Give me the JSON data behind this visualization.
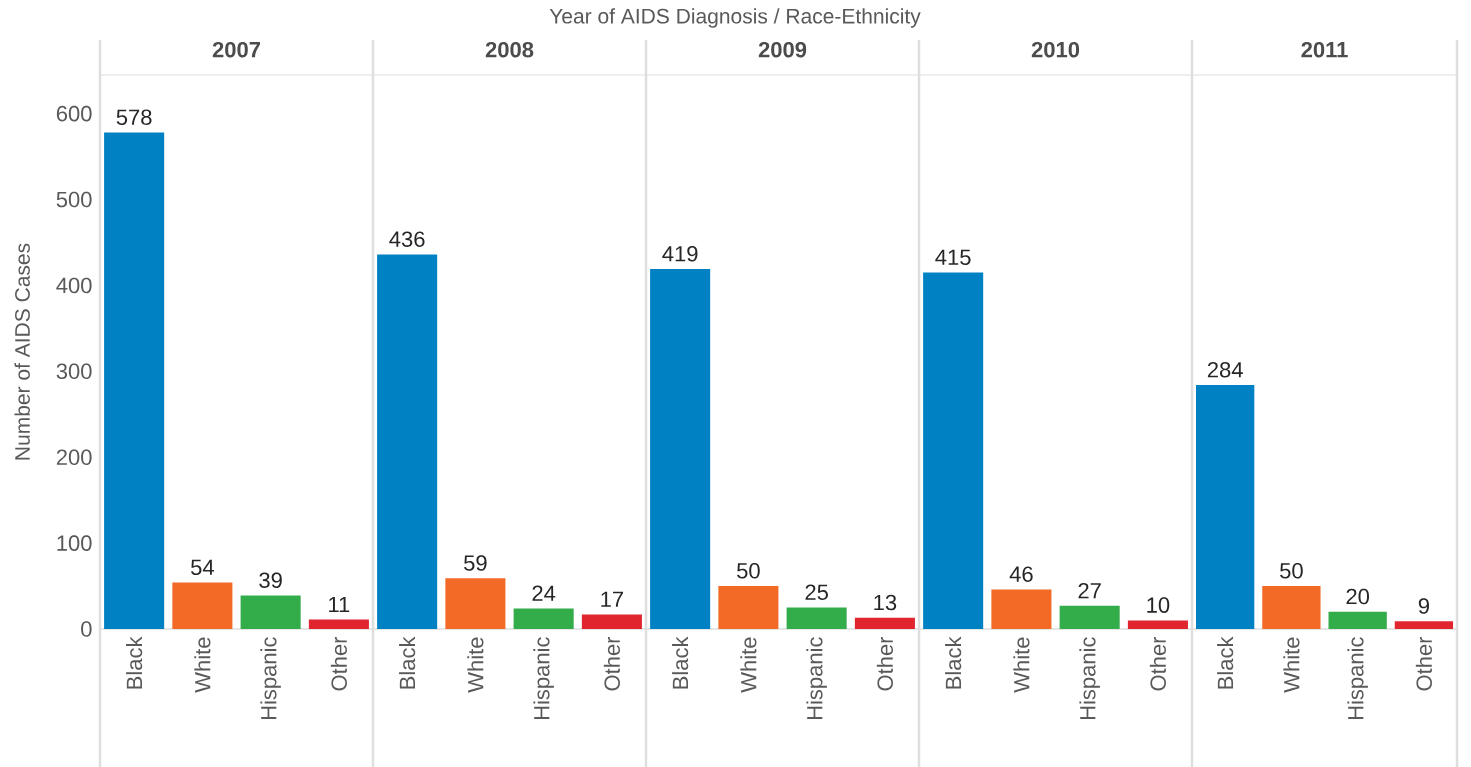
{
  "chart_data": [
    {
      "type": "bar",
      "title": "2007",
      "ylabel": "Number of AIDS Cases",
      "annotations": [
        "Year of AIDS Diagnosis  /  Race-Ethnicity"
      ],
      "categories": [
        "Black",
        "White",
        "Hispanic",
        "Other"
      ],
      "values": [
        578,
        54,
        39,
        11
      ],
      "colors": [
        "#0081c3",
        "#f26a26",
        "#33ac4a",
        "#e0252f"
      ],
      "ylim": [
        0,
        645
      ],
      "yticks": [
        0,
        100,
        200,
        300,
        400,
        500,
        600
      ],
      "data_labels": true
    },
    {
      "type": "bar",
      "title": "2008",
      "categories": [
        "Black",
        "White",
        "Hispanic",
        "Other"
      ],
      "values": [
        436,
        59,
        24,
        17
      ],
      "colors": [
        "#0081c3",
        "#f26a26",
        "#33ac4a",
        "#e0252f"
      ],
      "ylim": [
        0,
        645
      ],
      "data_labels": true,
      "tick_labels": "x"
    },
    {
      "type": "bar",
      "title": "2009",
      "categories": [
        "Black",
        "White",
        "Hispanic",
        "Other"
      ],
      "values": [
        419,
        50,
        25,
        13
      ],
      "colors": [
        "#0081c3",
        "#f26a26",
        "#33ac4a",
        "#e0252f"
      ],
      "ylim": [
        0,
        645
      ],
      "data_labels": true,
      "tick_labels": "x"
    },
    {
      "type": "bar",
      "title": "2010",
      "categories": [
        "Black",
        "White",
        "Hispanic",
        "Other"
      ],
      "values": [
        415,
        46,
        27,
        10
      ],
      "colors": [
        "#0081c3",
        "#f26a26",
        "#33ac4a",
        "#e0252f"
      ],
      "ylim": [
        0,
        645
      ],
      "data_labels": true,
      "tick_labels": "x"
    },
    {
      "type": "bar",
      "title": "2011",
      "categories": [
        "Black",
        "White",
        "Hispanic",
        "Other"
      ],
      "values": [
        284,
        50,
        20,
        9
      ],
      "colors": [
        "#0081c3",
        "#f26a26",
        "#33ac4a",
        "#e0252f"
      ],
      "ylim": [
        0,
        645
      ],
      "data_labels": true,
      "tick_labels": "x"
    }
  ]
}
